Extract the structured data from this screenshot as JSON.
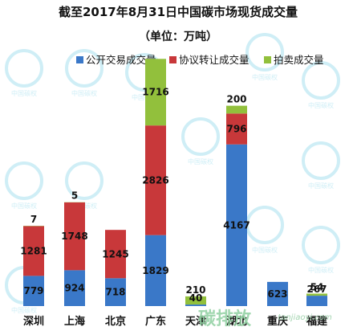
{
  "chart_data": {
    "type": "bar",
    "stacked": true,
    "title": "截至2017年8月31日中国碳市场现货成交量",
    "subtitle": "（单位：万吨）",
    "legend_position": "top-right",
    "grid": false,
    "categories": [
      "深圳",
      "上海",
      "北京",
      "广东",
      "天津",
      "湖北",
      "重庆",
      "福建"
    ],
    "series": [
      {
        "name": "公开交易成交量",
        "color": "#3a78c8",
        "values": [
          779,
          924,
          718,
          1829,
          40,
          4167,
          623,
          267
        ]
      },
      {
        "name": "协议转让成交量",
        "color": "#c8383a",
        "values": [
          1281,
          1748,
          1245,
          2826,
          0,
          796,
          0,
          0
        ]
      },
      {
        "name": "拍卖成交量",
        "color": "#92c03c",
        "values": [
          7,
          5,
          0,
          1716,
          210,
          200,
          0,
          54
        ]
      }
    ],
    "labels": [
      [
        "779",
        "1281",
        "7"
      ],
      [
        "924",
        "1748",
        "5"
      ],
      [
        "718",
        "1245",
        ""
      ],
      [
        "1829",
        "2826",
        "1716"
      ],
      [
        "40",
        "",
        "210"
      ],
      [
        "4167",
        "796",
        "200"
      ],
      [
        "623",
        "",
        ""
      ],
      [
        "267",
        "",
        "54"
      ]
    ]
  },
  "watermark": {
    "ring_text": "中国碳权",
    "brand": "碳排放",
    "url": "tanjiaoyi.com"
  }
}
